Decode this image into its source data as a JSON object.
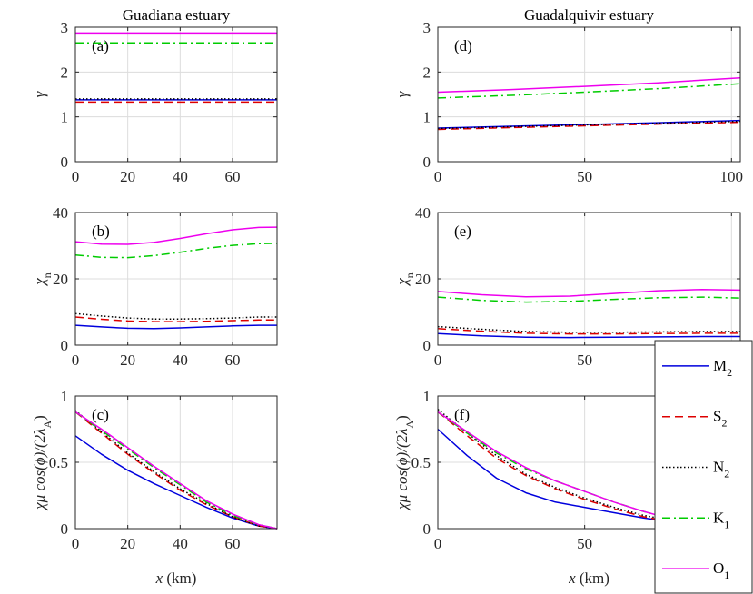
{
  "chart_data": {
    "type": "line",
    "grid": true,
    "legend_position": "right",
    "columns": [
      {
        "title": "Guadiana estuary",
        "xlim": [
          0,
          77
        ],
        "xticks": [
          0,
          20,
          40,
          60
        ]
      },
      {
        "title": "Guadalquivir estuary",
        "xlim": [
          0,
          103
        ],
        "xticks": [
          0,
          50,
          100
        ]
      }
    ],
    "rows": [
      {
        "ylabel_main": "γ",
        "ylabel_sub": "",
        "ylabel_rest": "",
        "ylim": [
          0,
          3
        ],
        "yticks": [
          0,
          1,
          2,
          3
        ]
      },
      {
        "ylabel_main": "χ",
        "ylabel_sub": "n",
        "ylabel_rest": "",
        "ylim": [
          0,
          40
        ],
        "yticks": [
          0,
          20,
          40
        ]
      },
      {
        "ylabel_main": "χμ cos(ϕ)/(2λ",
        "ylabel_sub": "A",
        "ylabel_rest": ")",
        "ylim": [
          0,
          1
        ],
        "yticks": [
          0,
          0.5,
          1
        ],
        "xlabel_var": "x",
        "xlabel_unit": " (km)"
      }
    ],
    "legend": [
      {
        "name": "M",
        "sub": "2",
        "color": "#0000dd",
        "dash": ""
      },
      {
        "name": "S",
        "sub": "2",
        "color": "#dd0000",
        "dash": "9,5"
      },
      {
        "name": "N",
        "sub": "2",
        "color": "#000000",
        "dash": "1.5,2.5"
      },
      {
        "name": "K",
        "sub": "1",
        "color": "#00cc00",
        "dash": "9,4,2,4"
      },
      {
        "name": "O",
        "sub": "1",
        "color": "#ee00ee",
        "dash": ""
      }
    ],
    "panels": [
      {
        "label": "(a)",
        "row": 0,
        "col": 0,
        "series": [
          {
            "name": "M2",
            "x": [
              0,
              77
            ],
            "y": [
              1.38,
              1.38
            ]
          },
          {
            "name": "S2",
            "x": [
              0,
              77
            ],
            "y": [
              1.33,
              1.33
            ]
          },
          {
            "name": "N2",
            "x": [
              0,
              77
            ],
            "y": [
              1.4,
              1.4
            ]
          },
          {
            "name": "K1",
            "x": [
              0,
              77
            ],
            "y": [
              2.65,
              2.65
            ]
          },
          {
            "name": "O1",
            "x": [
              0,
              77
            ],
            "y": [
              2.87,
              2.87
            ]
          }
        ]
      },
      {
        "label": "(b)",
        "row": 1,
        "col": 0,
        "series": [
          {
            "name": "M2",
            "x": [
              0,
              10,
              20,
              30,
              40,
              50,
              60,
              70,
              77
            ],
            "y": [
              6.0,
              5.5,
              5.1,
              5.0,
              5.2,
              5.5,
              5.8,
              6.0,
              6.0
            ]
          },
          {
            "name": "S2",
            "x": [
              0,
              10,
              20,
              30,
              40,
              50,
              60,
              70,
              77
            ],
            "y": [
              8.5,
              7.8,
              7.3,
              7.1,
              7.1,
              7.2,
              7.4,
              7.6,
              7.6
            ]
          },
          {
            "name": "N2",
            "x": [
              0,
              10,
              20,
              30,
              40,
              50,
              60,
              70,
              77
            ],
            "y": [
              9.5,
              8.8,
              8.2,
              7.9,
              7.9,
              8.0,
              8.2,
              8.5,
              8.5
            ]
          },
          {
            "name": "K1",
            "x": [
              0,
              10,
              20,
              30,
              40,
              50,
              60,
              70,
              77
            ],
            "y": [
              27.2,
              26.5,
              26.4,
              27.0,
              28.0,
              29.2,
              30.1,
              30.6,
              30.7
            ]
          },
          {
            "name": "O1",
            "x": [
              0,
              10,
              20,
              30,
              40,
              50,
              60,
              70,
              77
            ],
            "y": [
              31.2,
              30.5,
              30.4,
              31.0,
              32.2,
              33.6,
              34.8,
              35.5,
              35.6
            ]
          }
        ]
      },
      {
        "label": "(c)",
        "row": 2,
        "col": 0,
        "series": [
          {
            "name": "M2",
            "x": [
              0,
              10,
              20,
              30,
              40,
              50,
              60,
              70,
              77
            ],
            "y": [
              0.7,
              0.56,
              0.44,
              0.34,
              0.25,
              0.16,
              0.08,
              0.02,
              0.0
            ]
          },
          {
            "name": "S2",
            "x": [
              0,
              10,
              20,
              30,
              40,
              50,
              60,
              70,
              77
            ],
            "y": [
              0.88,
              0.72,
              0.56,
              0.42,
              0.29,
              0.18,
              0.09,
              0.02,
              0.0
            ]
          },
          {
            "name": "N2",
            "x": [
              0,
              10,
              20,
              30,
              40,
              50,
              60,
              70,
              77
            ],
            "y": [
              0.89,
              0.73,
              0.57,
              0.43,
              0.3,
              0.19,
              0.09,
              0.02,
              0.0
            ]
          },
          {
            "name": "K1",
            "x": [
              0,
              10,
              20,
              30,
              40,
              50,
              60,
              70,
              77
            ],
            "y": [
              0.88,
              0.74,
              0.6,
              0.46,
              0.33,
              0.2,
              0.1,
              0.03,
              0.0
            ]
          },
          {
            "name": "O1",
            "x": [
              0,
              10,
              20,
              30,
              40,
              50,
              60,
              70,
              77
            ],
            "y": [
              0.88,
              0.75,
              0.61,
              0.47,
              0.34,
              0.21,
              0.11,
              0.03,
              0.0
            ]
          }
        ]
      },
      {
        "label": "(d)",
        "row": 0,
        "col": 1,
        "series": [
          {
            "name": "M2",
            "x": [
              0,
              25,
              50,
              75,
              103
            ],
            "y": [
              0.75,
              0.79,
              0.83,
              0.87,
              0.92
            ]
          },
          {
            "name": "S2",
            "x": [
              0,
              25,
              50,
              75,
              103
            ],
            "y": [
              0.72,
              0.76,
              0.8,
              0.84,
              0.88
            ]
          },
          {
            "name": "N2",
            "x": [
              0,
              25,
              50,
              75,
              103
            ],
            "y": [
              0.74,
              0.78,
              0.82,
              0.86,
              0.9
            ]
          },
          {
            "name": "K1",
            "x": [
              0,
              25,
              50,
              75,
              103
            ],
            "y": [
              1.42,
              1.48,
              1.55,
              1.63,
              1.74
            ]
          },
          {
            "name": "O1",
            "x": [
              0,
              25,
              50,
              75,
              103
            ],
            "y": [
              1.55,
              1.61,
              1.68,
              1.76,
              1.87
            ]
          }
        ]
      },
      {
        "label": "(e)",
        "row": 1,
        "col": 1,
        "series": [
          {
            "name": "M2",
            "x": [
              0,
              15,
              30,
              45,
              60,
              75,
              90,
              103
            ],
            "y": [
              3.5,
              2.8,
              2.4,
              2.3,
              2.4,
              2.5,
              2.6,
              2.6
            ]
          },
          {
            "name": "S2",
            "x": [
              0,
              15,
              30,
              45,
              60,
              75,
              90,
              103
            ],
            "y": [
              5.0,
              4.2,
              3.6,
              3.4,
              3.4,
              3.5,
              3.6,
              3.6
            ]
          },
          {
            "name": "N2",
            "x": [
              0,
              15,
              30,
              45,
              60,
              75,
              90,
              103
            ],
            "y": [
              5.6,
              4.8,
              4.1,
              3.9,
              3.9,
              4.0,
              4.1,
              4.1
            ]
          },
          {
            "name": "K1",
            "x": [
              0,
              15,
              30,
              45,
              60,
              75,
              90,
              103
            ],
            "y": [
              14.5,
              13.5,
              13.0,
              13.2,
              13.8,
              14.3,
              14.5,
              14.2
            ]
          },
          {
            "name": "O1",
            "x": [
              0,
              15,
              30,
              45,
              60,
              75,
              90,
              103
            ],
            "y": [
              16.2,
              15.2,
              14.6,
              14.8,
              15.6,
              16.4,
              16.8,
              16.6
            ]
          }
        ]
      },
      {
        "label": "(f)",
        "row": 2,
        "col": 1,
        "series": [
          {
            "name": "M2",
            "x": [
              0,
              10,
              20,
              30,
              40,
              50,
              60,
              70,
              80,
              90,
              103
            ],
            "y": [
              0.75,
              0.55,
              0.38,
              0.27,
              0.2,
              0.16,
              0.12,
              0.08,
              0.05,
              0.02,
              0.0
            ]
          },
          {
            "name": "S2",
            "x": [
              0,
              10,
              20,
              30,
              40,
              50,
              60,
              70,
              80,
              90,
              103
            ],
            "y": [
              0.88,
              0.7,
              0.53,
              0.4,
              0.3,
              0.22,
              0.15,
              0.09,
              0.05,
              0.02,
              0.0
            ]
          },
          {
            "name": "N2",
            "x": [
              0,
              10,
              20,
              30,
              40,
              50,
              60,
              70,
              80,
              90,
              103
            ],
            "y": [
              0.9,
              0.72,
              0.55,
              0.41,
              0.31,
              0.23,
              0.16,
              0.1,
              0.06,
              0.02,
              0.0
            ]
          },
          {
            "name": "K1",
            "x": [
              0,
              10,
              20,
              30,
              40,
              50,
              60,
              70,
              80,
              90,
              103
            ],
            "y": [
              0.88,
              0.72,
              0.57,
              0.45,
              0.36,
              0.28,
              0.2,
              0.13,
              0.07,
              0.03,
              0.01
            ]
          },
          {
            "name": "O1",
            "x": [
              0,
              10,
              20,
              30,
              40,
              50,
              60,
              70,
              80,
              90,
              103
            ],
            "y": [
              0.88,
              0.73,
              0.58,
              0.46,
              0.36,
              0.28,
              0.2,
              0.13,
              0.07,
              0.03,
              0.0
            ]
          }
        ]
      }
    ]
  }
}
